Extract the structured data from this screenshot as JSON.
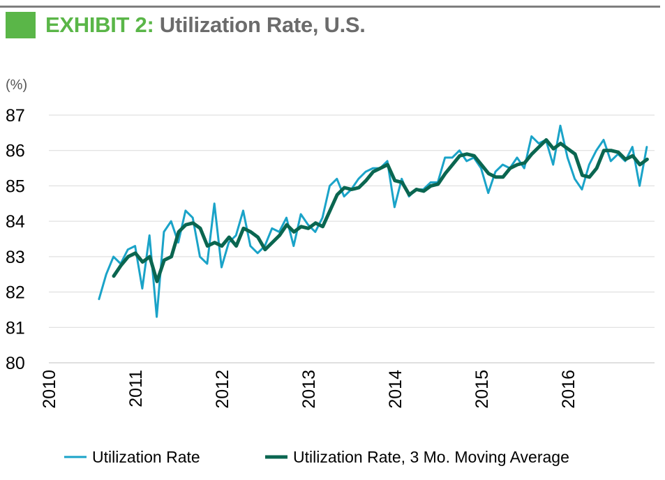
{
  "header": {
    "exhibit": "EXHIBIT 2:",
    "title": " Utilization Rate, U.S."
  },
  "colors": {
    "accent": "#5ab648",
    "title_gray": "#6b6b6b",
    "series_raw": "#1aa3c8",
    "series_avg": "#0a6650",
    "grid": "#d9d9d9"
  },
  "chart_data": {
    "type": "line",
    "title": "Utilization Rate, U.S.",
    "ylabel": "(%)",
    "xlabel": "",
    "ylim": [
      80,
      87
    ],
    "yticks": [
      "80",
      "81",
      "82",
      "83",
      "84",
      "85",
      "86",
      "87"
    ],
    "xlim": [
      2010,
      2017.0
    ],
    "xticks": [
      "2010",
      "2011",
      "2012",
      "2013",
      "2014",
      "2015",
      "2016"
    ],
    "grid": "horizontal",
    "legend_position": "bottom",
    "series": [
      {
        "name": "Utilization Rate",
        "x_start": 2010.58,
        "step": 0.0833,
        "values": [
          81.8,
          82.5,
          83.0,
          82.8,
          83.2,
          83.3,
          82.1,
          83.6,
          81.3,
          83.7,
          84.0,
          83.4,
          84.3,
          84.1,
          83.0,
          82.8,
          84.5,
          82.7,
          83.4,
          83.6,
          84.3,
          83.3,
          83.1,
          83.3,
          83.8,
          83.7,
          84.1,
          83.3,
          84.2,
          83.9,
          83.7,
          84.1,
          85.0,
          85.2,
          84.7,
          84.9,
          85.2,
          85.4,
          85.5,
          85.5,
          85.7,
          84.4,
          85.2,
          84.7,
          84.9,
          84.9,
          85.1,
          85.1,
          85.8,
          85.8,
          86.0,
          85.7,
          85.8,
          85.5,
          84.8,
          85.4,
          85.6,
          85.5,
          85.8,
          85.5,
          86.4,
          86.2,
          86.3,
          85.6,
          86.7,
          85.8,
          85.2,
          84.9,
          85.6,
          86.0,
          86.3,
          85.7,
          85.9,
          85.7,
          86.1,
          85.0,
          86.1
        ]
      },
      {
        "name": "Utilization Rate, 3 Mo. Moving Average",
        "x_start": 2010.75,
        "step": 0.0833,
        "values": [
          82.45,
          82.75,
          83.0,
          83.1,
          82.85,
          83.0,
          82.3,
          82.9,
          83.0,
          83.7,
          83.9,
          83.95,
          83.8,
          83.3,
          83.4,
          83.3,
          83.55,
          83.3,
          83.8,
          83.7,
          83.55,
          83.2,
          83.4,
          83.6,
          83.9,
          83.7,
          83.85,
          83.8,
          83.95,
          83.85,
          84.3,
          84.75,
          84.95,
          84.9,
          84.95,
          85.15,
          85.4,
          85.5,
          85.6,
          85.15,
          85.1,
          84.75,
          84.9,
          84.85,
          85.0,
          85.05,
          85.35,
          85.6,
          85.85,
          85.9,
          85.85,
          85.6,
          85.35,
          85.25,
          85.25,
          85.5,
          85.6,
          85.65,
          85.9,
          86.1,
          86.3,
          86.05,
          86.2,
          86.05,
          85.9,
          85.3,
          85.25,
          85.5,
          86.0,
          86.0,
          85.95,
          85.75,
          85.85,
          85.6,
          85.75
        ]
      }
    ]
  }
}
